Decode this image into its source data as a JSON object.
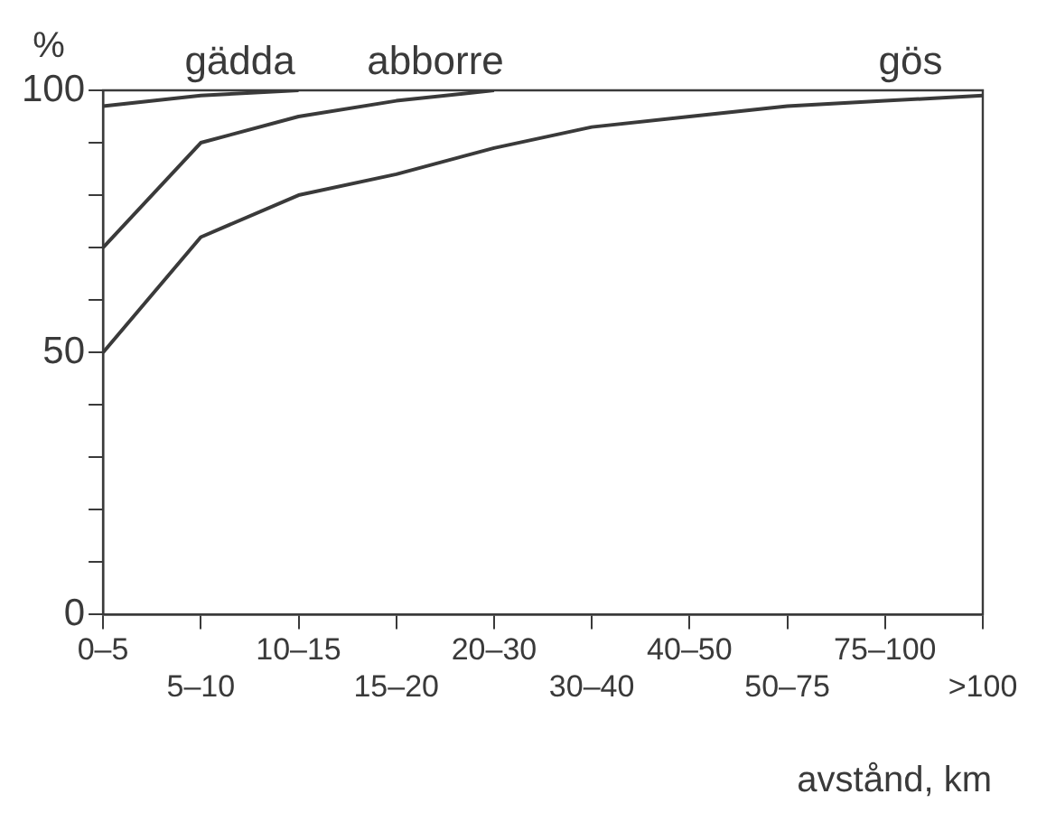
{
  "chart_data": {
    "type": "line",
    "ylabel": "%",
    "xlabel": "avstånd, km",
    "categories": [
      "0–5",
      "5–10",
      "10–15",
      "15–20",
      "20–30",
      "30–40",
      "40–50",
      "50–75",
      "75–100",
      ">100"
    ],
    "series": [
      {
        "name": "gädda",
        "color": "#3a3a3a",
        "values": [
          97,
          99,
          100,
          null,
          null,
          null,
          null,
          null,
          null,
          null
        ]
      },
      {
        "name": "abborre",
        "color": "#3a3a3a",
        "values": [
          70,
          90,
          95,
          98,
          100,
          null,
          null,
          null,
          null,
          null
        ]
      },
      {
        "name": "gös",
        "color": "#3a3a3a",
        "values": [
          50,
          72,
          80,
          84,
          89,
          93,
          95,
          97,
          98,
          99
        ]
      }
    ],
    "ylim": [
      0,
      100
    ],
    "yticks": [
      0,
      {
        "value": 10,
        "label": null
      },
      {
        "value": 20,
        "label": null
      },
      {
        "value": 30,
        "label": null
      },
      {
        "value": 40,
        "label": null
      },
      50,
      {
        "value": 60,
        "label": null
      },
      {
        "value": 70,
        "label": null
      },
      {
        "value": 80,
        "label": null
      },
      {
        "value": 90,
        "label": null
      },
      100
    ],
    "grid": false,
    "legend": false,
    "marker": "none",
    "line_style": "solid"
  }
}
